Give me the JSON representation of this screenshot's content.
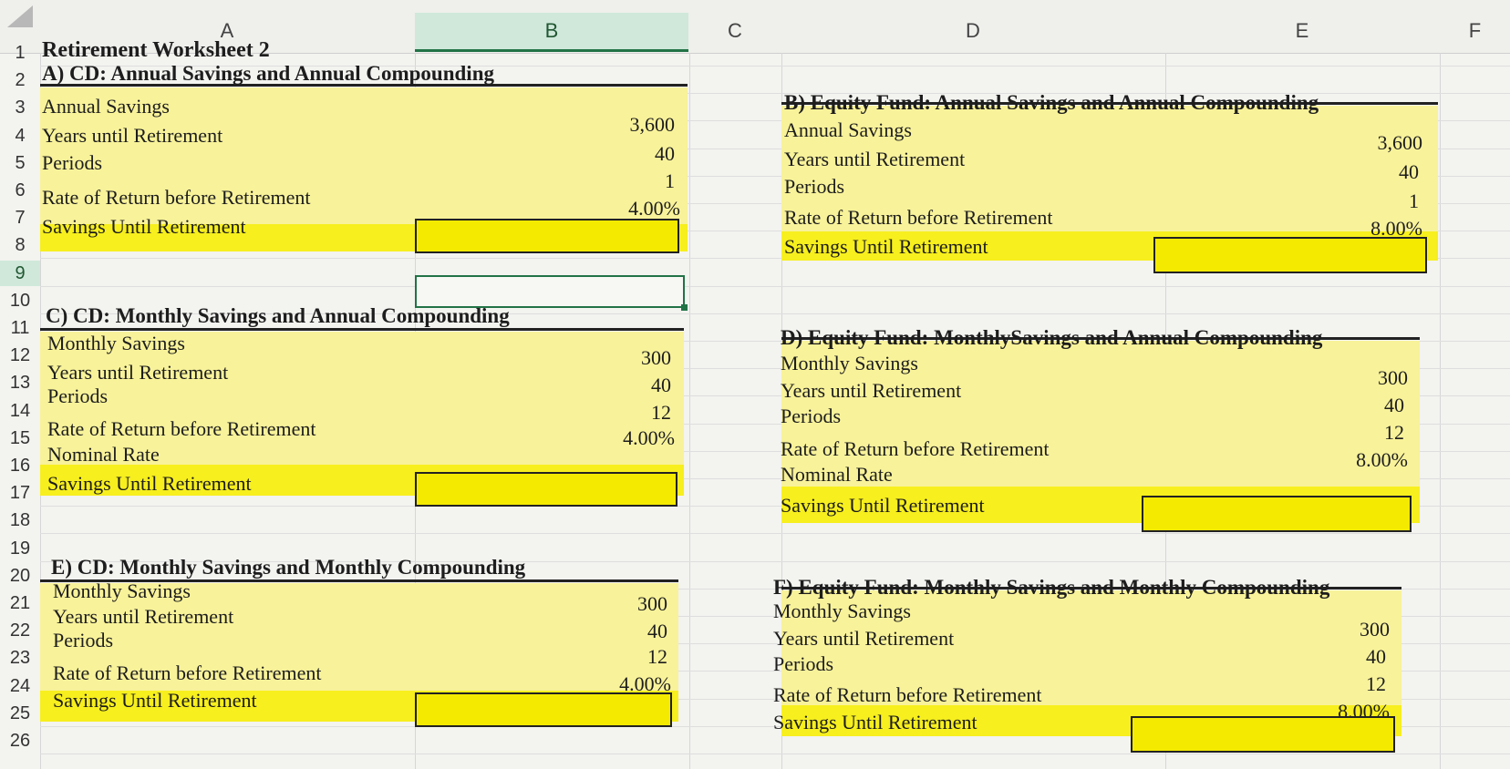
{
  "columns": [
    "A",
    "B",
    "C",
    "D",
    "E",
    "F"
  ],
  "rows": [
    "1",
    "2",
    "3",
    "4",
    "5",
    "6",
    "7",
    "8",
    "9",
    "10",
    "11",
    "12",
    "13",
    "14",
    "15",
    "16",
    "17",
    "18",
    "19",
    "20",
    "21",
    "22",
    "23",
    "24",
    "25",
    "26"
  ],
  "sheet_title": "Retirement Worksheet 2",
  "sections": {
    "a": {
      "title": "A) CD: Annual Savings and Annual Compounding",
      "labels": [
        "Annual Savings",
        "Years until Retirement",
        "Periods",
        "Rate of Return before Retirement",
        "Savings Until Retirement"
      ],
      "values": [
        "3,600",
        "40",
        "1",
        "4.00%"
      ]
    },
    "b": {
      "title": "B) Equity Fund: Annual Savings and Annual Compounding",
      "labels": [
        "Annual Savings",
        "Years until Retirement",
        "Periods",
        "Rate of Return before Retirement",
        "Savings Until Retirement"
      ],
      "values": [
        "3,600",
        "40",
        "1",
        "8.00%"
      ]
    },
    "c": {
      "title": "C) CD: Monthly Savings and Annual Compounding",
      "labels": [
        "Monthly Savings",
        "Years until Retirement",
        "Periods",
        "Rate of Return before Retirement",
        "Nominal Rate",
        "Savings Until Retirement"
      ],
      "values": [
        "300",
        "40",
        "12",
        "4.00%"
      ]
    },
    "d": {
      "title": "D) Equity Fund: MonthlySavings and Annual Compounding",
      "labels": [
        "Monthly Savings",
        "Years until Retirement",
        "Periods",
        "Rate of Return before Retirement",
        "Nominal Rate",
        "Savings Until Retirement"
      ],
      "values": [
        "300",
        "40",
        "12",
        "8.00%"
      ]
    },
    "e": {
      "title": "E) CD: Monthly Savings and Monthly Compounding",
      "labels": [
        "Monthly Savings",
        "Years until Retirement",
        "Periods",
        "Rate of Return before Retirement",
        "Savings Until Retirement"
      ],
      "values": [
        "300",
        "40",
        "12",
        "4.00%"
      ]
    },
    "f": {
      "title": "F) Equity Fund: Monthly Savings and Monthly Compounding",
      "labels": [
        "Monthly Savings",
        "Years until Retirement",
        "Periods",
        "Rate of Return before Retirement",
        "Savings Until Retirement"
      ],
      "values": [
        "300",
        "40",
        "12",
        "8.00%"
      ]
    }
  },
  "colors": {
    "fill_light": "#f8f29a",
    "fill_highlight": "#f7ef1e",
    "selection": "#217346"
  }
}
